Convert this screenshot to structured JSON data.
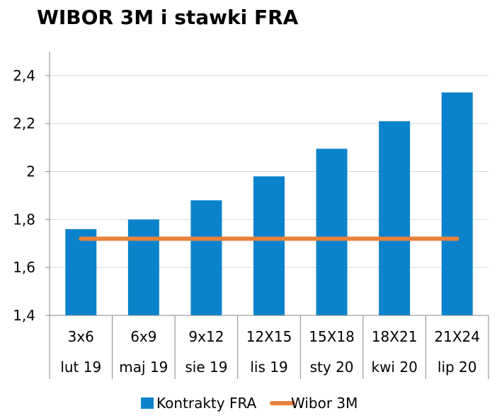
{
  "chart_data": {
    "type": "bar",
    "title": "WIBOR 3M i stawki FRA",
    "categories": [
      {
        "line1": "3x6",
        "line2": "lut 19"
      },
      {
        "line1": "6x9",
        "line2": "maj 19"
      },
      {
        "line1": "9x12",
        "line2": "sie 19"
      },
      {
        "line1": "12X15",
        "line2": "lis 19"
      },
      {
        "line1": "15X18",
        "line2": "sty 20"
      },
      {
        "line1": "18X21",
        "line2": "kwi 20"
      },
      {
        "line1": "21X24",
        "line2": "lip 20"
      }
    ],
    "series": [
      {
        "name": "Kontrakty FRA",
        "kind": "bar",
        "color": "#0A83CC",
        "values": [
          1.76,
          1.8,
          1.88,
          1.98,
          2.095,
          2.21,
          2.33
        ]
      },
      {
        "name": "Wibor 3M",
        "kind": "line",
        "color": "#E8823A",
        "values": [
          1.72,
          1.72,
          1.72,
          1.72,
          1.72,
          1.72,
          1.72
        ]
      }
    ],
    "ylim": [
      1.4,
      2.5
    ],
    "yticks": [
      1.4,
      1.6,
      1.8,
      2.0,
      2.2,
      2.4
    ],
    "ytick_labels": [
      "1,4",
      "1,6",
      "1,8",
      "2",
      "2,2",
      "2,4"
    ],
    "grid": true,
    "legend_position": "bottom"
  }
}
